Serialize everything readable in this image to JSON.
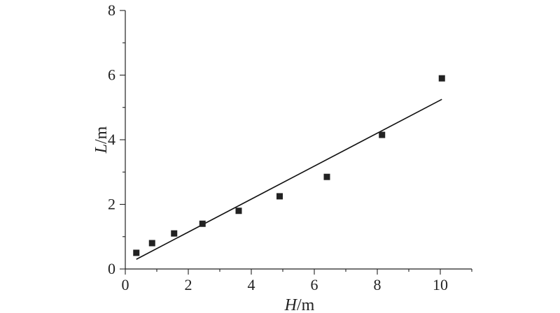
{
  "chart_data": {
    "type": "scatter",
    "xlabel": {
      "symbol": "H",
      "unit": "/m"
    },
    "ylabel": {
      "symbol": "L",
      "unit": "/m"
    },
    "xlim": [
      0,
      11
    ],
    "ylim": [
      0,
      8
    ],
    "x_ticks": [
      0,
      2,
      4,
      6,
      8,
      10
    ],
    "y_ticks": [
      0,
      2,
      4,
      6,
      8
    ],
    "x_tick_labels": [
      "0",
      "2",
      "4",
      "6",
      "8",
      "10"
    ],
    "y_tick_labels": [
      "0",
      "2",
      "4",
      "6",
      "8"
    ],
    "grid": false,
    "series": [
      {
        "type": "scatter",
        "marker": "square",
        "x": [
          0.35,
          0.85,
          1.55,
          2.45,
          3.6,
          4.9,
          6.4,
          8.15,
          10.05
        ],
        "y": [
          0.5,
          0.8,
          1.1,
          1.4,
          1.8,
          2.25,
          2.85,
          4.15,
          5.9
        ]
      },
      {
        "type": "line",
        "x": [
          0.35,
          10.05
        ],
        "y": [
          0.3,
          5.25
        ]
      }
    ],
    "colors": {
      "marker": "#222222",
      "line": "#111111",
      "axis": "#222222"
    }
  }
}
